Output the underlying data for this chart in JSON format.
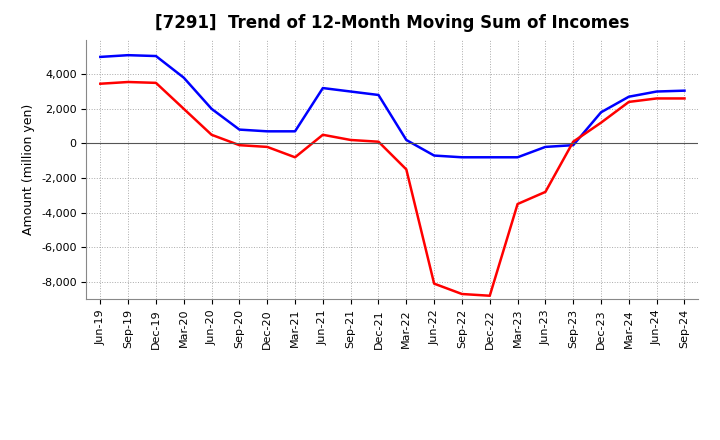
{
  "title": "[7291]  Trend of 12-Month Moving Sum of Incomes",
  "ylabel": "Amount (million yen)",
  "xlabels": [
    "Jun-19",
    "Sep-19",
    "Dec-19",
    "Mar-20",
    "Jun-20",
    "Sep-20",
    "Dec-20",
    "Mar-21",
    "Jun-21",
    "Sep-21",
    "Dec-21",
    "Mar-22",
    "Jun-22",
    "Sep-22",
    "Dec-22",
    "Mar-23",
    "Jun-23",
    "Sep-23",
    "Dec-23",
    "Mar-24",
    "Jun-24",
    "Sep-24"
  ],
  "ordinary_income": [
    5000,
    5100,
    5050,
    3800,
    2000,
    800,
    700,
    700,
    3200,
    3000,
    2800,
    200,
    -700,
    -800,
    -800,
    -800,
    -200,
    -100,
    1800,
    2700,
    3000,
    3050
  ],
  "net_income": [
    3450,
    3550,
    3500,
    2000,
    500,
    -100,
    -200,
    -800,
    500,
    200,
    100,
    -1500,
    -8100,
    -8700,
    -8800,
    -3500,
    -2800,
    100,
    1200,
    2400,
    2600,
    2600
  ],
  "ordinary_color": "#0000ff",
  "net_color": "#ff0000",
  "background_color": "#ffffff",
  "grid_color": "#aaaaaa",
  "ylim": [
    -9000,
    6000
  ],
  "yticks": [
    -8000,
    -6000,
    -4000,
    -2000,
    0,
    2000,
    4000
  ],
  "line_width": 1.8,
  "title_fontsize": 12,
  "axis_fontsize": 8,
  "ylabel_fontsize": 9,
  "legend_fontsize": 9
}
